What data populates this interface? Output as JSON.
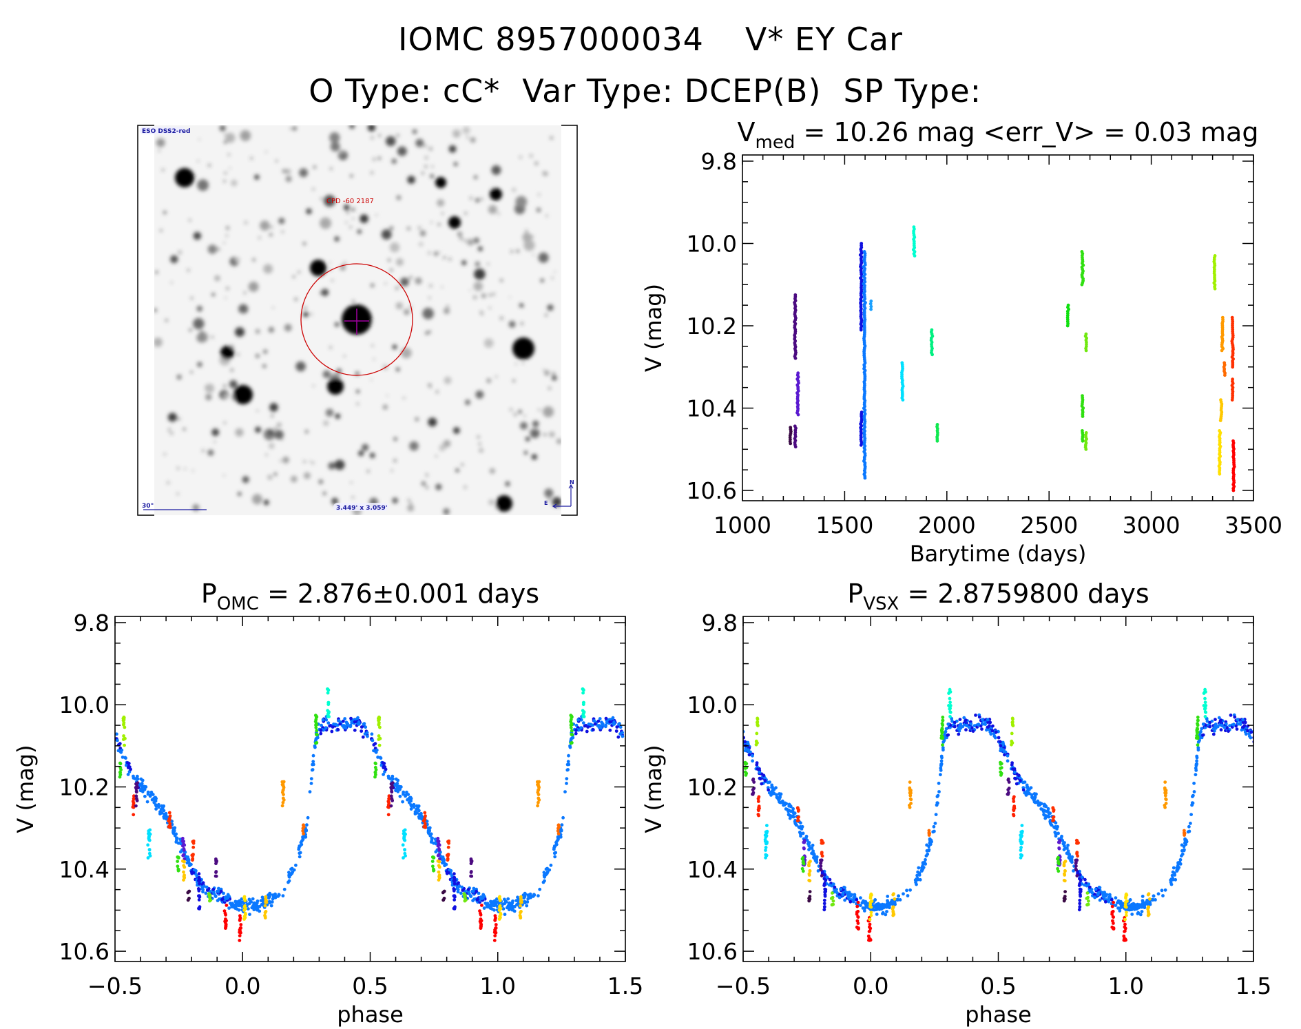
{
  "header": {
    "object_id": "IOMC 8957000034",
    "object_name": "V* EY Car",
    "o_type_label": "O Type:",
    "o_type": "cC*",
    "var_type_label": "Var Type:",
    "var_type": "DCEP(B)",
    "sp_type_label": "SP Type:",
    "sp_type": ""
  },
  "image_panel": {
    "survey": "ESO DSS2-red",
    "target_label": "CPD -60 2187",
    "scale_bar": "30\"",
    "field_size": "3.449' x 3.059'",
    "north": "N",
    "east": "E",
    "circle_color": "#cc0000",
    "cross_color": "#a000a0",
    "label_color": "#1a1aa0"
  },
  "chart_data": [
    {
      "type": "scatter",
      "title": {
        "main": "V",
        "sub": "med",
        "rest": " = 10.26 mag <err_V> = 0.03 mag"
      },
      "xlabel": "Barytime (days)",
      "ylabel": "V (mag)",
      "xlim": [
        1000,
        3500
      ],
      "ylim": [
        10.625,
        9.785
      ],
      "y_reversed": true,
      "xticks": [
        1000,
        1500,
        2000,
        2500,
        3000,
        3500
      ],
      "xtick_labels": [
        "1000",
        "1500",
        "2000",
        "2500",
        "3000",
        "3500"
      ],
      "yticks": [
        9.8,
        10.0,
        10.2,
        10.4,
        10.6
      ],
      "ytick_labels": [
        "9.8",
        "10.0",
        "10.2",
        "10.4",
        "10.6"
      ],
      "grid": false,
      "groups": [
        {
          "color": "#3a0a45",
          "x": 1234,
          "v": [
            10.447,
            10.486
          ]
        },
        {
          "color": "#4b0a80",
          "x": 1258,
          "v": [
            10.125,
            10.279
          ]
        },
        {
          "color": "#4b0a80",
          "x": 1258,
          "v": [
            10.444,
            10.494
          ]
        },
        {
          "color": "#5a1ad0",
          "x": 1271,
          "v": [
            10.315,
            10.416
          ]
        },
        {
          "color": "#1010e0",
          "x": 1581,
          "v": [
            10.0,
            10.21
          ]
        },
        {
          "color": "#1010e0",
          "x": 1581,
          "v": [
            10.41,
            10.49
          ]
        },
        {
          "color": "#0a78ff",
          "x": 1597,
          "v": [
            10.02,
            10.57
          ]
        },
        {
          "color": "#1aa0ff",
          "x": 1629,
          "v": [
            10.14,
            10.16
          ]
        },
        {
          "color": "#00e0ff",
          "x": 1782,
          "v": [
            10.29,
            10.38
          ]
        },
        {
          "color": "#00ffd0",
          "x": 1839,
          "v": [
            9.96,
            10.03
          ]
        },
        {
          "color": "#00f080",
          "x": 1926,
          "v": [
            10.21,
            10.27
          ]
        },
        {
          "color": "#10e850",
          "x": 1953,
          "v": [
            10.44,
            10.48
          ]
        },
        {
          "color": "#10e010",
          "x": 2592,
          "v": [
            10.15,
            10.2
          ]
        },
        {
          "color": "#30e010",
          "x": 2663,
          "v": [
            10.02,
            10.1
          ]
        },
        {
          "color": "#30e010",
          "x": 2663,
          "v": [
            10.37,
            10.42
          ]
        },
        {
          "color": "#30e010",
          "x": 2663,
          "v": [
            10.455,
            10.48
          ]
        },
        {
          "color": "#70e810",
          "x": 2681,
          "v": [
            10.22,
            10.26
          ]
        },
        {
          "color": "#70e810",
          "x": 2681,
          "v": [
            10.46,
            10.5
          ]
        },
        {
          "color": "#a0f000",
          "x": 3310,
          "v": [
            10.03,
            10.11
          ]
        },
        {
          "color": "#ff9900",
          "x": 3348,
          "v": [
            10.18,
            10.26
          ]
        },
        {
          "color": "#ff6a00",
          "x": 3358,
          "v": [
            10.29,
            10.32
          ]
        },
        {
          "color": "#ffc800",
          "x": 3342,
          "v": [
            10.38,
            10.43
          ]
        },
        {
          "color": "#ffe000",
          "x": 3335,
          "v": [
            10.455,
            10.56
          ]
        },
        {
          "color": "#ff3000",
          "x": 3398,
          "v": [
            10.18,
            10.3
          ]
        },
        {
          "color": "#ff3000",
          "x": 3398,
          "v": [
            10.33,
            10.38
          ]
        },
        {
          "color": "#ff0000",
          "x": 3403,
          "v": [
            10.48,
            10.6
          ]
        }
      ]
    },
    {
      "type": "scatter",
      "title": {
        "main": "P",
        "sub": "OMC",
        "rest": " = 2.876±0.001 days"
      },
      "xlabel": "phase",
      "ylabel": "V (mag)",
      "xlim": [
        -0.5,
        1.5
      ],
      "ylim": [
        10.625,
        9.785
      ],
      "y_reversed": true,
      "xticks": [
        -0.5,
        0.0,
        0.5,
        1.0,
        1.5
      ],
      "xtick_labels": [
        "−0.5",
        "0.0",
        "0.5",
        "1.0",
        "1.5"
      ],
      "yticks": [
        9.8,
        10.0,
        10.2,
        10.4,
        10.6
      ],
      "ytick_labels": [
        "9.8",
        "10.0",
        "10.2",
        "10.4",
        "10.6"
      ],
      "grid": false,
      "curve_colors": [
        "#0a78ff",
        "#1010e0"
      ],
      "mean_curve": [
        [
          0.0,
          10.49
        ],
        [
          0.05,
          10.49
        ],
        [
          0.1,
          10.48
        ],
        [
          0.15,
          10.46
        ],
        [
          0.2,
          10.4
        ],
        [
          0.25,
          10.3
        ],
        [
          0.27,
          10.18
        ],
        [
          0.29,
          10.07
        ],
        [
          0.32,
          10.05
        ],
        [
          0.4,
          10.05
        ],
        [
          0.45,
          10.04
        ],
        [
          0.5,
          10.08
        ],
        [
          0.55,
          10.15
        ],
        [
          0.6,
          10.2
        ],
        [
          0.65,
          10.23
        ],
        [
          0.7,
          10.27
        ],
        [
          0.75,
          10.33
        ],
        [
          0.8,
          10.4
        ],
        [
          0.85,
          10.45
        ],
        [
          0.9,
          10.46
        ],
        [
          0.95,
          10.48
        ],
        [
          1.0,
          10.49
        ]
      ],
      "groups": [
        {
          "color": "#a0f000",
          "phase": 0.535,
          "v": [
            10.03,
            10.1
          ]
        },
        {
          "color": "#30e010",
          "phase": 0.52,
          "v": [
            10.14,
            10.18
          ]
        },
        {
          "color": "#ff2000",
          "phase": 0.572,
          "v": [
            10.22,
            10.27
          ]
        },
        {
          "color": "#4b0a80",
          "phase": 0.585,
          "v": [
            10.18,
            10.25
          ]
        },
        {
          "color": "#00e0ff",
          "phase": 0.633,
          "v": [
            10.29,
            10.38
          ]
        },
        {
          "color": "#ff3000",
          "phase": 0.714,
          "v": [
            10.25,
            10.3
          ]
        },
        {
          "color": "#5a1ad0",
          "phase": 0.768,
          "v": [
            10.32,
            10.38
          ]
        },
        {
          "color": "#ff3000",
          "phase": 0.805,
          "v": [
            10.33,
            10.38
          ]
        },
        {
          "color": "#30e010",
          "phase": 0.748,
          "v": [
            10.37,
            10.41
          ]
        },
        {
          "color": "#ffc800",
          "phase": 0.77,
          "v": [
            10.38,
            10.43
          ]
        },
        {
          "color": "#3a0a45",
          "phase": 0.79,
          "v": [
            10.45,
            10.48
          ]
        },
        {
          "color": "#1010e0",
          "phase": 0.83,
          "v": [
            10.41,
            10.5
          ]
        },
        {
          "color": "#4b0a80",
          "phase": 0.897,
          "v": [
            10.375,
            10.42
          ]
        },
        {
          "color": "#70e810",
          "phase": 0.87,
          "v": [
            10.455,
            10.49
          ]
        },
        {
          "color": "#ff0000",
          "phase": 0.933,
          "v": [
            10.48,
            10.55
          ]
        },
        {
          "color": "#ff0000",
          "phase": 0.99,
          "v": [
            10.51,
            10.58
          ]
        },
        {
          "color": "#ffe000",
          "phase": 1.01,
          "v": [
            10.46,
            10.53
          ]
        },
        {
          "color": "#ffc800",
          "phase": 1.09,
          "v": [
            10.455,
            10.52
          ]
        },
        {
          "color": "#ff9900",
          "phase": 1.158,
          "v": [
            10.18,
            10.255
          ]
        },
        {
          "color": "#ff6a00",
          "phase": 1.236,
          "v": [
            10.29,
            10.32
          ]
        },
        {
          "color": "#00ffd0",
          "phase": 1.336,
          "v": [
            9.96,
            10.03
          ]
        },
        {
          "color": "#30e010",
          "phase": 1.29,
          "v": [
            10.02,
            10.1
          ]
        }
      ]
    },
    {
      "type": "scatter",
      "title": {
        "main": "P",
        "sub": "VSX",
        "rest": " = 2.8759800 days"
      },
      "xlabel": "phase",
      "ylabel": "V (mag)",
      "xlim": [
        -0.5,
        1.5
      ],
      "ylim": [
        10.625,
        9.785
      ],
      "y_reversed": true,
      "xticks": [
        -0.5,
        0.0,
        0.5,
        1.0,
        1.5
      ],
      "xtick_labels": [
        "−0.5",
        "0.0",
        "0.5",
        "1.0",
        "1.5"
      ],
      "yticks": [
        9.8,
        10.0,
        10.2,
        10.4,
        10.6
      ],
      "ytick_labels": [
        "9.8",
        "10.0",
        "10.2",
        "10.4",
        "10.6"
      ],
      "grid": false,
      "curve_colors": [
        "#0a78ff",
        "#1010e0"
      ],
      "mean_curve": [
        [
          0.0,
          10.49
        ],
        [
          0.05,
          10.49
        ],
        [
          0.1,
          10.48
        ],
        [
          0.15,
          10.46
        ],
        [
          0.2,
          10.4
        ],
        [
          0.25,
          10.3
        ],
        [
          0.27,
          10.18
        ],
        [
          0.29,
          10.07
        ],
        [
          0.32,
          10.05
        ],
        [
          0.4,
          10.05
        ],
        [
          0.45,
          10.04
        ],
        [
          0.5,
          10.08
        ],
        [
          0.55,
          10.15
        ],
        [
          0.6,
          10.2
        ],
        [
          0.65,
          10.23
        ],
        [
          0.7,
          10.27
        ],
        [
          0.75,
          10.33
        ],
        [
          0.8,
          10.4
        ],
        [
          0.85,
          10.45
        ],
        [
          0.9,
          10.46
        ],
        [
          0.95,
          10.48
        ],
        [
          1.0,
          10.49
        ]
      ],
      "groups": [
        {
          "color": "#a0f000",
          "phase": 0.555,
          "v": [
            10.03,
            10.1
          ]
        },
        {
          "color": "#30e010",
          "phase": 0.51,
          "v": [
            10.14,
            10.18
          ]
        },
        {
          "color": "#ff2000",
          "phase": 0.56,
          "v": [
            10.22,
            10.27
          ]
        },
        {
          "color": "#4b0a80",
          "phase": 0.54,
          "v": [
            10.18,
            10.22
          ]
        },
        {
          "color": "#00e0ff",
          "phase": 0.59,
          "v": [
            10.29,
            10.38
          ]
        },
        {
          "color": "#ff3000",
          "phase": 0.715,
          "v": [
            10.25,
            10.29
          ]
        },
        {
          "color": "#5a1ad0",
          "phase": 0.74,
          "v": [
            10.32,
            10.4
          ]
        },
        {
          "color": "#ff3000",
          "phase": 0.81,
          "v": [
            10.33,
            10.37
          ]
        },
        {
          "color": "#30e010",
          "phase": 0.735,
          "v": [
            10.37,
            10.41
          ]
        },
        {
          "color": "#ffc800",
          "phase": 0.76,
          "v": [
            10.38,
            10.43
          ]
        },
        {
          "color": "#3a0a45",
          "phase": 0.76,
          "v": [
            10.45,
            10.48
          ]
        },
        {
          "color": "#1010e0",
          "phase": 0.82,
          "v": [
            10.41,
            10.5
          ]
        },
        {
          "color": "#4b0a80",
          "phase": 0.805,
          "v": [
            10.375,
            10.42
          ]
        },
        {
          "color": "#70e810",
          "phase": 0.85,
          "v": [
            10.455,
            10.49
          ]
        },
        {
          "color": "#ff0000",
          "phase": 0.95,
          "v": [
            10.48,
            10.55
          ]
        },
        {
          "color": "#ff0000",
          "phase": 0.995,
          "v": [
            10.51,
            10.58
          ]
        },
        {
          "color": "#ffe000",
          "phase": 1.0,
          "v": [
            10.46,
            10.53
          ]
        },
        {
          "color": "#ffc800",
          "phase": 1.09,
          "v": [
            10.455,
            10.52
          ]
        },
        {
          "color": "#ff9900",
          "phase": 1.155,
          "v": [
            10.18,
            10.255
          ]
        },
        {
          "color": "#ff6a00",
          "phase": 1.23,
          "v": [
            10.29,
            10.32
          ]
        },
        {
          "color": "#00ffd0",
          "phase": 1.31,
          "v": [
            9.96,
            10.03
          ]
        },
        {
          "color": "#30e010",
          "phase": 1.28,
          "v": [
            10.02,
            10.1
          ]
        }
      ]
    }
  ]
}
